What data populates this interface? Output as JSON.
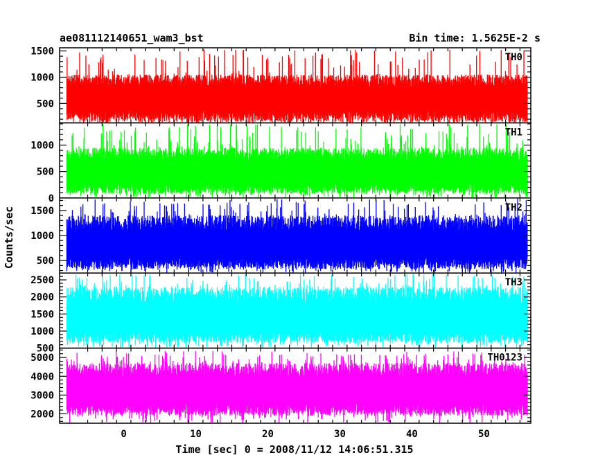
{
  "chart_data": {
    "type": "line",
    "title": "ae081112140651_wam3_bst",
    "subtitle": "Bin time: 1.5625E-2 s",
    "xlabel": "Time [sec] 0 = 2008/11/12 14:06:51.315",
    "ylabel": "Counts/sec",
    "xlim": [
      -8.9,
      56.5
    ],
    "x_ticks": [
      0,
      10,
      20,
      30,
      40,
      50
    ],
    "x_data_range": [
      -7.9,
      56.0
    ],
    "bin_time": 0.015625,
    "series": [
      {
        "name": "TH0",
        "color": "#ff0000",
        "ylim": [
          130,
          1560
        ],
        "y_ticks": [
          500,
          1000,
          1500
        ],
        "mean": 620,
        "noise_low": 150,
        "noise_high": 1050,
        "spike_max": 1540
      },
      {
        "name": "TH1",
        "color": "#00ff00",
        "ylim": [
          0,
          1420
        ],
        "y_ticks": [
          0,
          500,
          1000
        ],
        "mean": 500,
        "noise_low": 80,
        "noise_high": 950,
        "spike_max": 1400
      },
      {
        "name": "TH2",
        "color": "#0000ff",
        "ylim": [
          250,
          1750
        ],
        "y_ticks": [
          500,
          1000,
          1500
        ],
        "mean": 830,
        "noise_low": 330,
        "noise_high": 1400,
        "spike_max": 1740
      },
      {
        "name": "TH3",
        "color": "#00ffff",
        "ylim": [
          500,
          2700
        ],
        "y_ticks": [
          500,
          1000,
          1500,
          2000,
          2500
        ],
        "mean": 1400,
        "noise_low": 650,
        "noise_high": 2300,
        "spike_max": 2680
      },
      {
        "name": "TH0123",
        "color": "#ff00ff",
        "ylim": [
          1500,
          5500
        ],
        "y_ticks": [
          2000,
          3000,
          4000,
          5000
        ],
        "mean": 3350,
        "noise_low": 1900,
        "noise_high": 4700,
        "spike_max": 5350
      }
    ]
  }
}
